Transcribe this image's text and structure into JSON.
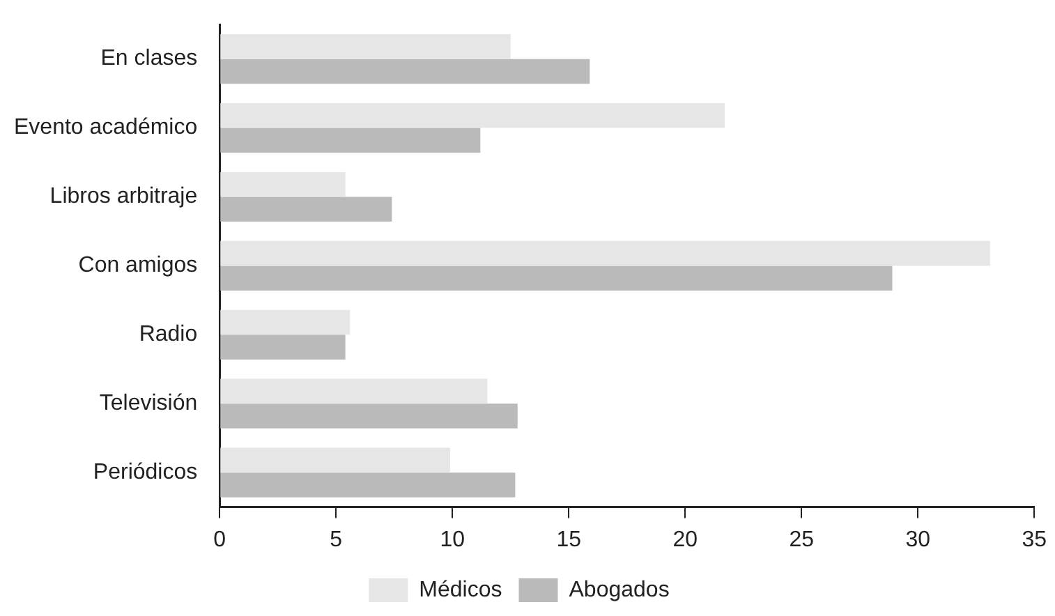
{
  "chart_data": {
    "type": "bar",
    "orientation": "horizontal",
    "categories": [
      "En clases",
      "Evento académico",
      "Libros arbitraje",
      "Con amigos",
      "Radio",
      "Televisión",
      "Periódicos"
    ],
    "series": [
      {
        "name": "Médicos",
        "color": "#e6e6e6",
        "values": [
          12.5,
          21.7,
          5.4,
          33.1,
          5.6,
          11.5,
          9.9
        ]
      },
      {
        "name": "Abogados",
        "color": "#bababa",
        "values": [
          15.9,
          11.2,
          7.4,
          28.9,
          5.4,
          12.8,
          12.7
        ]
      }
    ],
    "xlim": [
      0,
      35
    ],
    "xticks": [
      0,
      5,
      10,
      15,
      20,
      25,
      30,
      35
    ],
    "grid": false,
    "legend": "bottom"
  }
}
